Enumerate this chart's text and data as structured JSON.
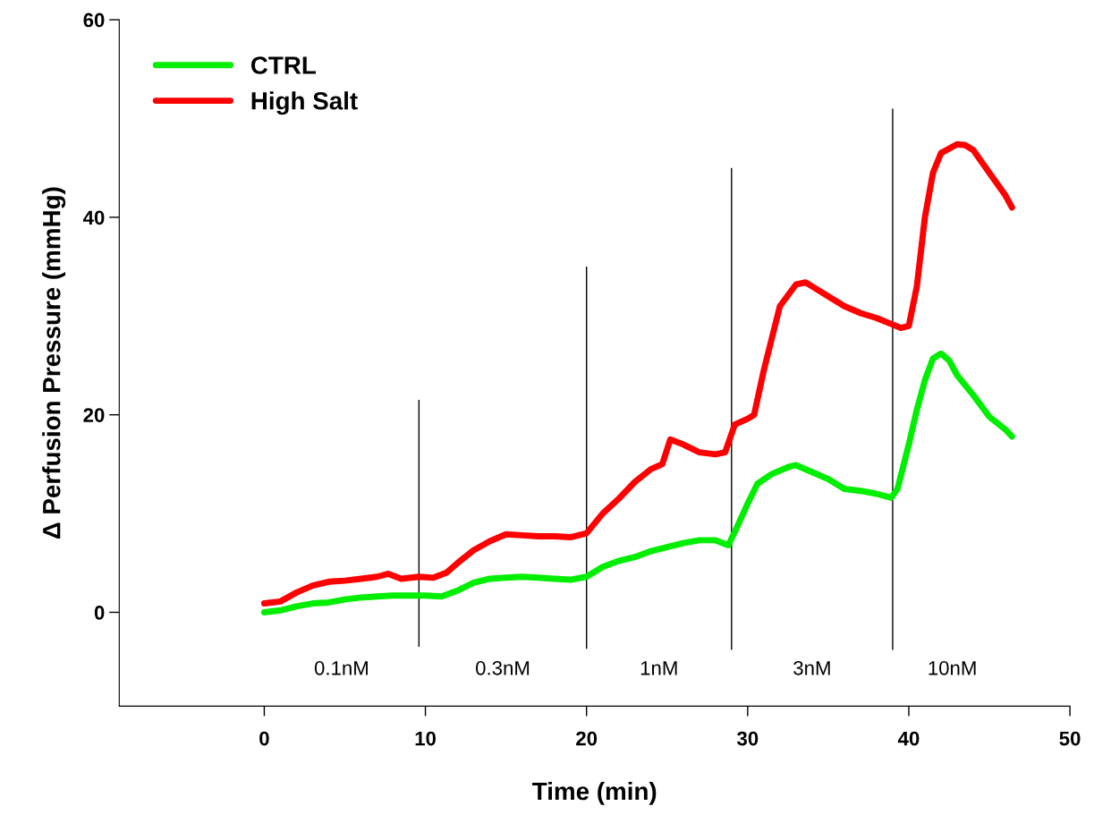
{
  "chart_data": {
    "type": "line",
    "xlabel": "Time (min)",
    "ylabel": "Δ Perfusion Pressure (mmHg)",
    "xlim": [
      -9,
      50
    ],
    "xticks": [
      0,
      10,
      20,
      30,
      40,
      50
    ],
    "ylim": [
      -9.5,
      60
    ],
    "yticks": [
      0,
      20,
      40,
      60
    ],
    "grid": false,
    "legend": "top left",
    "marker": "none",
    "line_style": "solid",
    "series": [
      {
        "name": "CTRL",
        "color": "#00ee00",
        "x": [
          0,
          1,
          2,
          3,
          4,
          5,
          6,
          7,
          8,
          9,
          10,
          11,
          12,
          13,
          14,
          15,
          16,
          17,
          18,
          19,
          20,
          21,
          22,
          23,
          24,
          25,
          26,
          27,
          28,
          28.8,
          29.3,
          30,
          30.6,
          31.5,
          32.5,
          33,
          34,
          35,
          36,
          37,
          38,
          38.9,
          39.3,
          40,
          40.5,
          41,
          41.5,
          42,
          42.5,
          43,
          44,
          45,
          46,
          46.4
        ],
        "values": [
          0.0,
          0.2,
          0.6,
          0.9,
          1.0,
          1.3,
          1.5,
          1.6,
          1.7,
          1.7,
          1.7,
          1.6,
          2.2,
          3.0,
          3.4,
          3.5,
          3.6,
          3.5,
          3.4,
          3.3,
          3.6,
          4.6,
          5.2,
          5.6,
          6.2,
          6.6,
          7.0,
          7.3,
          7.3,
          6.8,
          8.5,
          11.0,
          13.0,
          14.0,
          14.7,
          14.9,
          14.2,
          13.5,
          12.5,
          12.3,
          12.0,
          11.6,
          12.5,
          17.0,
          20.5,
          23.5,
          25.7,
          26.2,
          25.5,
          24.0,
          22.0,
          19.8,
          18.5,
          17.8
        ]
      },
      {
        "name": "High Salt",
        "color": "#ff0000",
        "x": [
          0,
          1,
          2,
          3,
          4,
          5,
          6,
          7,
          7.7,
          8.5,
          9.6,
          10.5,
          11.3,
          12,
          13,
          14,
          15,
          16,
          17,
          18,
          19,
          20,
          21,
          22,
          23,
          24,
          24.7,
          25.2,
          26,
          27,
          28,
          28.6,
          29.2,
          30,
          30.4,
          31,
          32,
          33,
          33.6,
          34,
          35,
          36,
          37,
          38,
          38.9,
          39.5,
          40,
          40.5,
          41,
          41.5,
          42,
          43,
          43.5,
          44,
          45,
          46,
          46.4
        ],
        "values": [
          0.9,
          1.1,
          2.0,
          2.7,
          3.1,
          3.2,
          3.4,
          3.6,
          3.9,
          3.4,
          3.6,
          3.5,
          4.0,
          5.0,
          6.3,
          7.2,
          7.9,
          7.8,
          7.7,
          7.7,
          7.6,
          8.0,
          10.0,
          11.5,
          13.2,
          14.5,
          15.0,
          17.5,
          17.0,
          16.2,
          16.0,
          16.2,
          19.0,
          19.6,
          20.0,
          24.5,
          31.0,
          33.2,
          33.4,
          33.0,
          32.0,
          31.0,
          30.3,
          29.8,
          29.2,
          28.8,
          29.0,
          33.0,
          40.0,
          44.5,
          46.5,
          47.4,
          47.3,
          46.8,
          44.5,
          42.2,
          41.0
        ]
      },
      {
        "color": "#000000",
        "x": [
          9.6,
          9.6
        ],
        "values": [
          -3.5,
          21.5
        ]
      },
      {
        "color": "#000000",
        "x": [
          20,
          20
        ],
        "values": [
          -3.7,
          35
        ]
      },
      {
        "color": "#000000",
        "x": [
          29,
          29
        ],
        "values": [
          -3.8,
          45
        ]
      },
      {
        "color": "#000000",
        "x": [
          39,
          39
        ],
        "values": [
          -3.8,
          51
        ]
      }
    ],
    "annotations": [
      "0.1nM",
      "0.3nM",
      "1nM",
      "3nM",
      "10nM"
    ]
  }
}
